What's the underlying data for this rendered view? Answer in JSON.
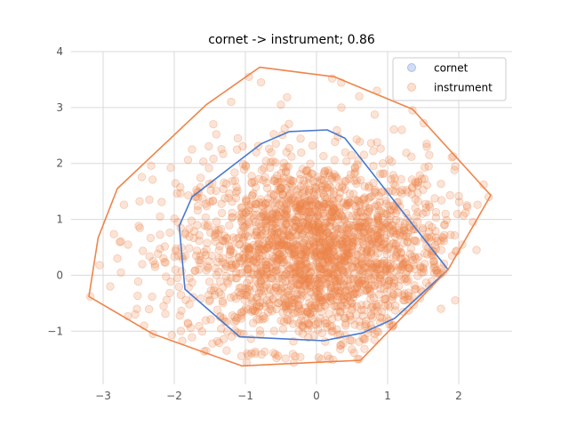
{
  "chart_data": {
    "type": "scatter",
    "title": "cornet -> instrument; 0.86",
    "xlabel": "",
    "ylabel": "",
    "xlim": [
      -3.45,
      2.75
    ],
    "ylim": [
      -1.95,
      4.0
    ],
    "xticks": [
      -3,
      -2,
      -1,
      0,
      1,
      2
    ],
    "yticks": [
      -1,
      0,
      1,
      2,
      3,
      4
    ],
    "grid": true,
    "legend_position": "top-right",
    "series": [
      {
        "name": "cornet",
        "color": "#4878cf",
        "hull": [
          [
            1.85,
            0.1
          ],
          [
            1.1,
            -0.77
          ],
          [
            0.65,
            -1.03
          ],
          [
            0.1,
            -1.17
          ],
          [
            -1.08,
            -1.1
          ],
          [
            -1.85,
            -0.25
          ],
          [
            -1.93,
            0.88
          ],
          [
            -1.75,
            1.4
          ],
          [
            -0.78,
            2.35
          ],
          [
            -0.38,
            2.57
          ],
          [
            0.15,
            2.6
          ],
          [
            0.4,
            2.45
          ]
        ]
      },
      {
        "name": "instrument",
        "color": "#ee854a",
        "hull": [
          [
            2.45,
            1.43
          ],
          [
            1.85,
            0.1
          ],
          [
            0.62,
            -1.52
          ],
          [
            -1.05,
            -1.62
          ],
          [
            -2.3,
            -1.05
          ],
          [
            -3.2,
            -0.38
          ],
          [
            -3.07,
            0.67
          ],
          [
            -2.8,
            1.55
          ],
          [
            -1.55,
            3.05
          ],
          [
            -0.8,
            3.72
          ],
          [
            0.25,
            3.55
          ],
          [
            1.35,
            2.97
          ]
        ],
        "cloud": {
          "cx": 0.0,
          "cy": 0.4,
          "sx": 0.95,
          "sy": 0.85,
          "n": 2200
        },
        "outliers": [
          [
            -3.18,
            -0.38
          ],
          [
            -3.05,
            0.18
          ],
          [
            -2.8,
            0.3
          ],
          [
            -2.5,
            0.88
          ],
          [
            -2.35,
            1.35
          ],
          [
            -2.2,
            1.05
          ],
          [
            -2.05,
            1.92
          ],
          [
            -1.75,
            2.25
          ],
          [
            -1.45,
            2.7
          ],
          [
            -0.95,
            3.55
          ],
          [
            -0.78,
            3.45
          ],
          [
            0.22,
            3.52
          ],
          [
            0.6,
            3.2
          ],
          [
            1.35,
            2.95
          ],
          [
            1.95,
            1.95
          ],
          [
            2.12,
            1.22
          ],
          [
            2.35,
            1.62
          ],
          [
            2.42,
            1.4
          ],
          [
            2.05,
            0.55
          ],
          [
            1.95,
            -0.45
          ],
          [
            -2.55,
            -0.7
          ],
          [
            -2.3,
            -1.05
          ],
          [
            -1.95,
            0.95
          ],
          [
            -2.75,
            0.05
          ],
          [
            -1.55,
            -1.35
          ],
          [
            0.6,
            -1.5
          ],
          [
            -0.3,
            -1.45
          ],
          [
            1.2,
            2.6
          ],
          [
            0.85,
            3.3
          ],
          [
            -2.65,
            0.55
          ],
          [
            2.2,
            0.95
          ],
          [
            1.75,
            -0.6
          ],
          [
            -2.45,
            0.2
          ],
          [
            1.55,
            2.3
          ],
          [
            -1.2,
            3.1
          ],
          [
            0.35,
            3.0
          ],
          [
            -0.5,
            3.05
          ],
          [
            2.25,
            0.45
          ],
          [
            -2.15,
            -0.55
          ],
          [
            -2.9,
            -0.2
          ]
        ]
      }
    ]
  }
}
